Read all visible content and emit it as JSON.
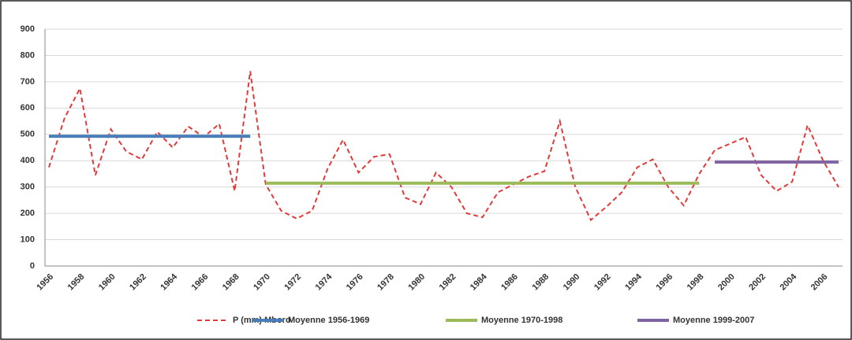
{
  "chart_data": {
    "type": "line",
    "categories": [
      "1956",
      null,
      "1958",
      null,
      "1960",
      null,
      "1962",
      null,
      "1964",
      null,
      "1966",
      null,
      "1968",
      null,
      "1970",
      null,
      "1972",
      null,
      "1974",
      null,
      "1976",
      null,
      "1978",
      null,
      "1980",
      null,
      "1982",
      null,
      "1984",
      null,
      "1986",
      null,
      "1988",
      null,
      "1990",
      null,
      "1992",
      null,
      "1994",
      null,
      "1996",
      null,
      "1998",
      null,
      "2000",
      null,
      "2002",
      null,
      "2004",
      null,
      "2006",
      null
    ],
    "series": [
      {
        "name": "P (mm) Mboro",
        "color": "#e03a3a",
        "dashed": true,
        "values": [
          375,
          560,
          675,
          345,
          520,
          435,
          405,
          510,
          450,
          530,
          490,
          540,
          285,
          740,
          310,
          210,
          180,
          210,
          370,
          480,
          355,
          415,
          425,
          260,
          235,
          355,
          300,
          200,
          185,
          280,
          310,
          340,
          360,
          550,
          300,
          175,
          225,
          280,
          375,
          405,
          300,
          230,
          350,
          440,
          465,
          490,
          345,
          285,
          320,
          535,
          400,
          300
        ]
      },
      {
        "name": "Moyenne 1956-1969",
        "color": "#4a7ebb",
        "values": [
          493,
          493,
          493,
          493,
          493,
          493,
          493,
          493,
          493,
          493,
          493,
          493,
          493,
          493,
          null,
          null,
          null,
          null,
          null,
          null,
          null,
          null,
          null,
          null,
          null,
          null,
          null,
          null,
          null,
          null,
          null,
          null,
          null,
          null,
          null,
          null,
          null,
          null,
          null,
          null,
          null,
          null,
          null,
          null,
          null,
          null,
          null,
          null,
          null,
          null,
          null,
          null
        ]
      },
      {
        "name": "Moyenne 1970-1998",
        "color": "#9bbb59",
        "values": [
          null,
          null,
          null,
          null,
          null,
          null,
          null,
          null,
          null,
          null,
          null,
          null,
          null,
          null,
          315,
          315,
          315,
          315,
          315,
          315,
          315,
          315,
          315,
          315,
          315,
          315,
          315,
          315,
          315,
          315,
          315,
          315,
          315,
          315,
          315,
          315,
          315,
          315,
          315,
          315,
          315,
          315,
          315,
          null,
          null,
          null,
          null,
          null,
          null,
          null,
          null,
          null
        ]
      },
      {
        "name": "Moyenne 1999-2007",
        "color": "#8064a2",
        "values": [
          null,
          null,
          null,
          null,
          null,
          null,
          null,
          null,
          null,
          null,
          null,
          null,
          null,
          null,
          null,
          null,
          null,
          null,
          null,
          null,
          null,
          null,
          null,
          null,
          null,
          null,
          null,
          null,
          null,
          null,
          null,
          null,
          null,
          null,
          null,
          null,
          null,
          null,
          null,
          null,
          null,
          null,
          null,
          395,
          395,
          395,
          395,
          395,
          395,
          395,
          395,
          395
        ]
      }
    ],
    "ylim": [
      0,
      900
    ],
    "yticks": [
      0,
      100,
      200,
      300,
      400,
      500,
      600,
      700,
      800,
      900
    ],
    "grid": true,
    "legend": "bottom"
  }
}
